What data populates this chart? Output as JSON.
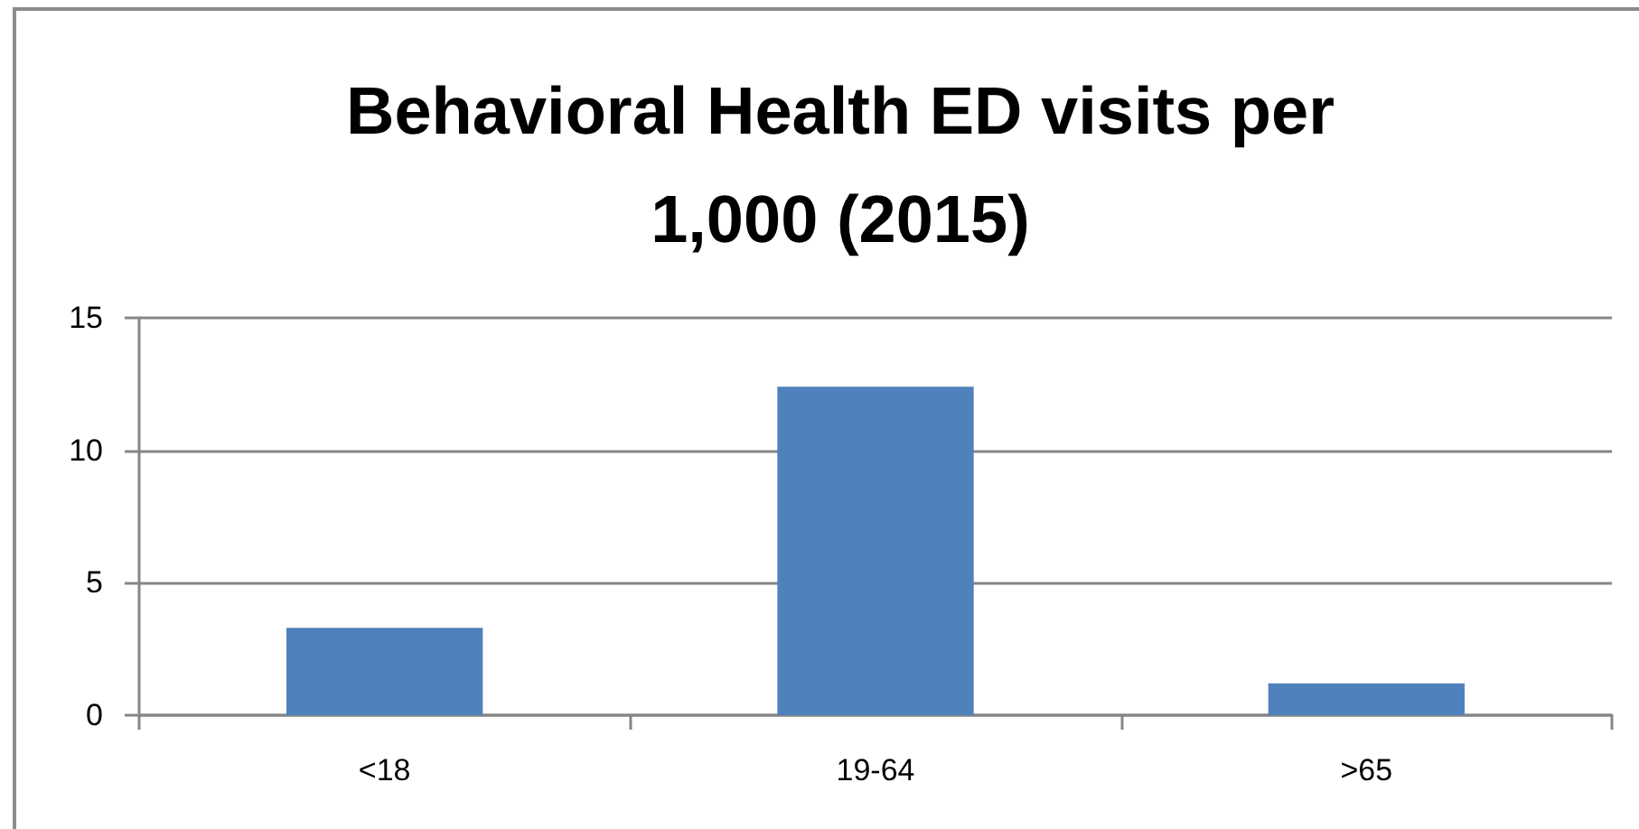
{
  "chart_data": {
    "type": "bar",
    "title": "Behavioral Health ED visits per 1,000 (2015)",
    "categories": [
      "<18",
      "19-64",
      ">65"
    ],
    "values": [
      3.3,
      12.4,
      1.2
    ],
    "color": "#4f81bd",
    "ylim": [
      0,
      15
    ],
    "yticks": [
      0,
      5,
      10,
      15
    ],
    "grid": "y"
  }
}
